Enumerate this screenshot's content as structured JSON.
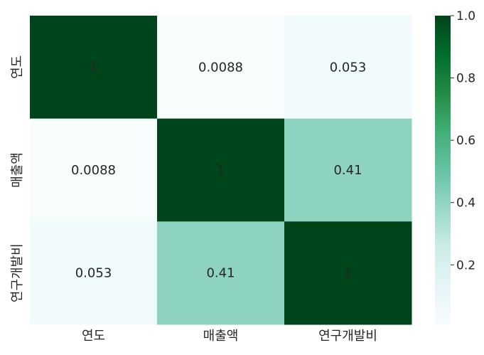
{
  "chart_data": {
    "type": "heatmap",
    "title": "",
    "xlabel": "",
    "ylabel": "",
    "x_categories": [
      "연도",
      "매출액",
      "연구개발비"
    ],
    "y_categories": [
      "연도",
      "매출액",
      "연구개발비"
    ],
    "values": [
      [
        1,
        0.0088,
        0.053
      ],
      [
        0.0088,
        1,
        0.41
      ],
      [
        0.053,
        0.41,
        1
      ]
    ],
    "annotations": [
      [
        "1",
        "0.0088",
        "0.053"
      ],
      [
        "0.0088",
        "1",
        "0.41"
      ],
      [
        "0.053",
        "0.41",
        "1"
      ]
    ],
    "colorbar": {
      "range": [
        0.0088,
        1.0
      ],
      "ticks": [
        "0.2",
        "0.4",
        "0.6",
        "0.8",
        "1.0"
      ],
      "tick_values": [
        0.2,
        0.4,
        0.6,
        0.8,
        1.0
      ],
      "colormap": "BuGn",
      "colors": [
        "#f7fcfd",
        "#e5f5f9",
        "#ccece6",
        "#99d8c9",
        "#66c2a4",
        "#41ae76",
        "#238b45",
        "#006d2c",
        "#00441b"
      ]
    },
    "grid": false,
    "legend": "colorbar-right"
  }
}
